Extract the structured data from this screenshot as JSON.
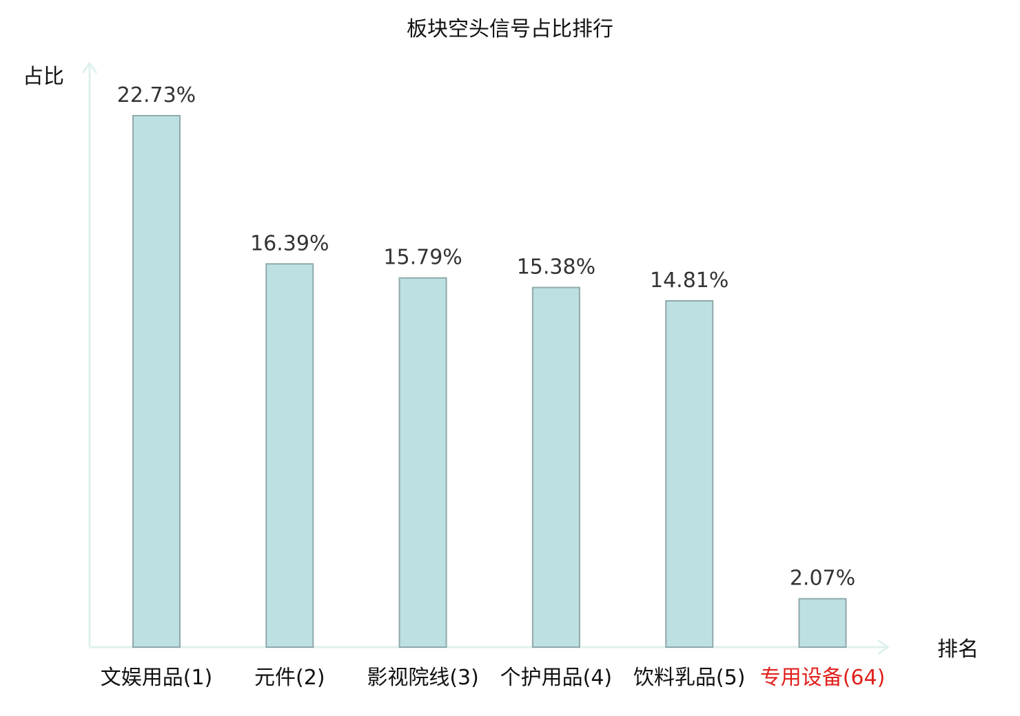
{
  "chart_data": {
    "type": "bar",
    "title": "板块空头信号占比排行",
    "ylabel": "占比",
    "xlabel": "排名",
    "categories": [
      "文娱用品(1)",
      "元件(2)",
      "影视院线(3)",
      "个护用品(4)",
      "饮料乳品(5)",
      "专用设备(64)"
    ],
    "values": [
      22.73,
      16.39,
      15.79,
      15.38,
      14.81,
      2.07
    ],
    "value_labels": [
      "22.73%",
      "16.39%",
      "15.79%",
      "15.38%",
      "14.81%",
      "2.07%"
    ],
    "highlight_index": 5,
    "ylim": [
      0,
      25
    ],
    "grid": false,
    "legend": "none"
  },
  "colors": {
    "bar_fill": "#bde0e2",
    "bar_stroke": "#8fa9aa",
    "axis": "#dff1ee",
    "highlight_text": "#e0201b",
    "text": "#111111",
    "value_text": "#333333"
  }
}
